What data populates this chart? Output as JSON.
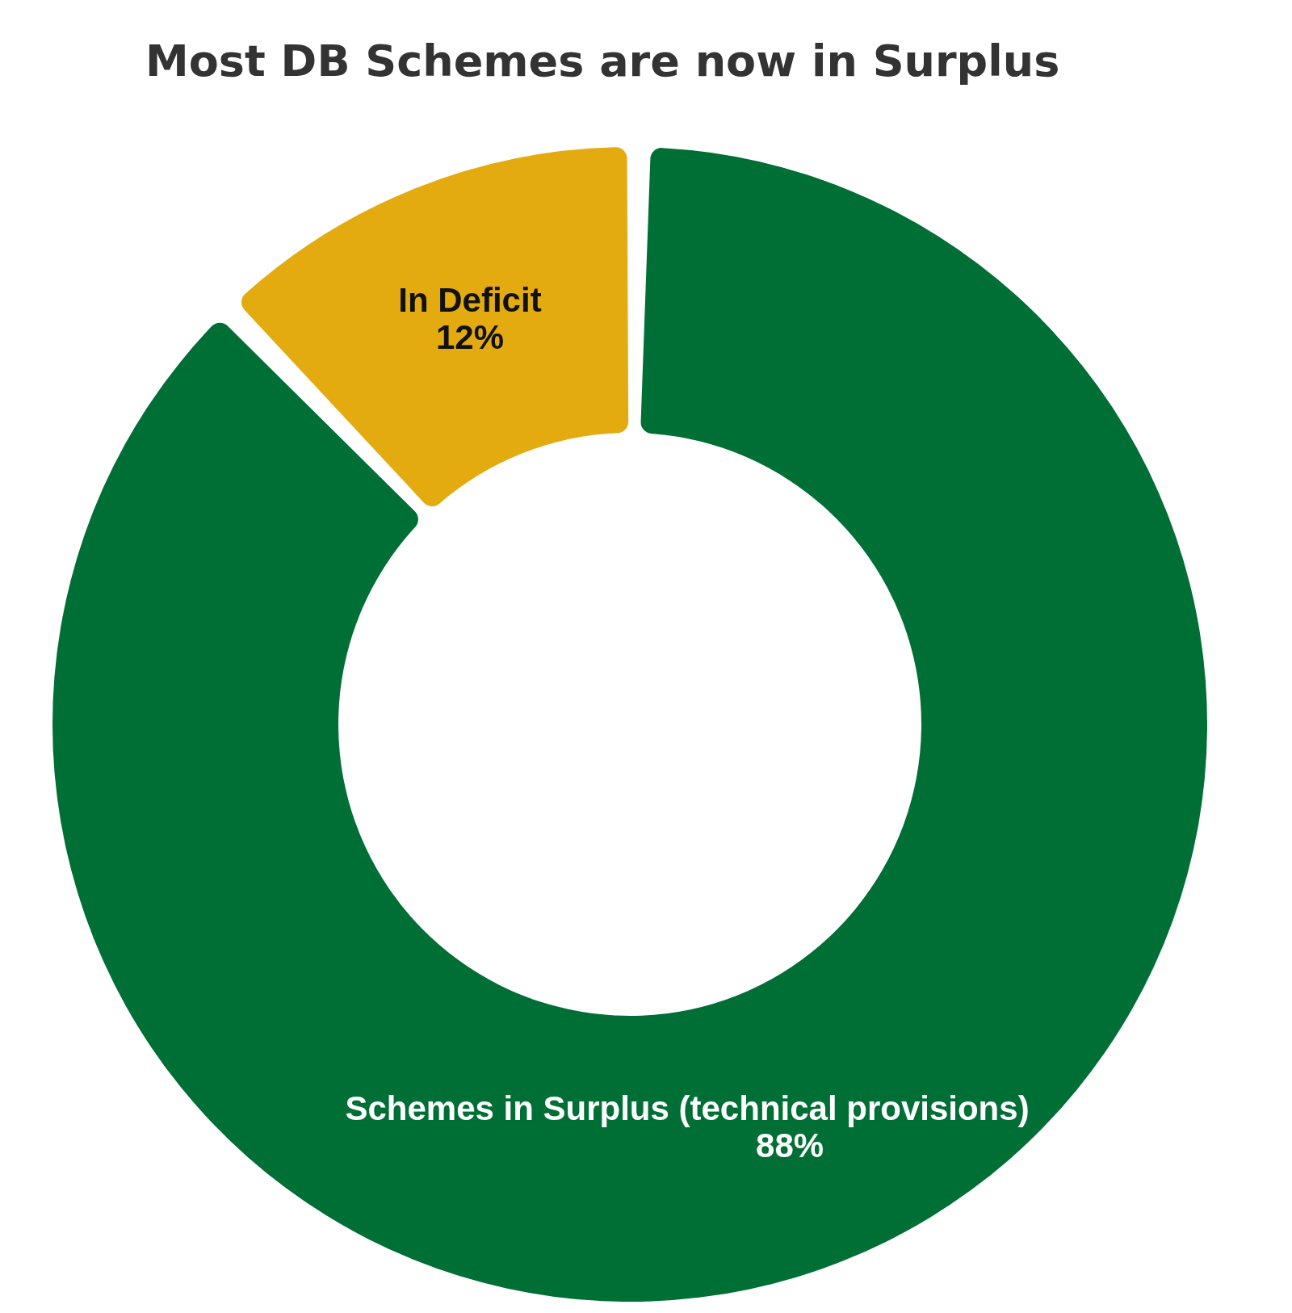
{
  "chart_data": {
    "type": "donut",
    "title": "Most DB Schemes are now in Surplus",
    "categories": [
      "In Deficit",
      "Schemes in Surplus (technical provisions)"
    ],
    "values": [
      12,
      88
    ],
    "colors": [
      "#e3ab10",
      "#006f35"
    ],
    "value_labels": [
      "12%",
      "88%"
    ],
    "legend": false
  }
}
